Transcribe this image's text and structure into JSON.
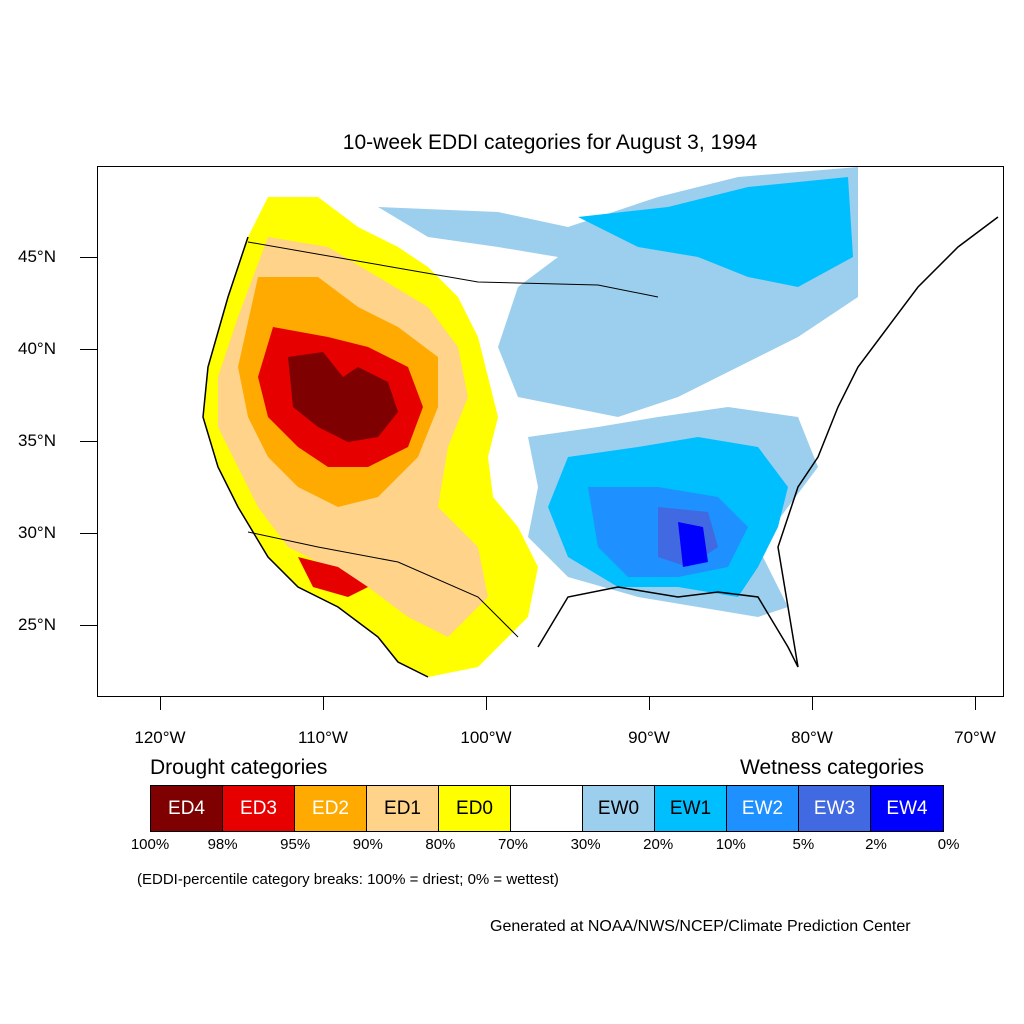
{
  "title": "10-week EDDI categories for August 3, 1994",
  "y_axis_labels": [
    "45°N",
    "40°N",
    "35°N",
    "30°N",
    "25°N"
  ],
  "x_axis_labels": [
    "120°W",
    "110°W",
    "100°W",
    "90°W",
    "80°W",
    "70°W"
  ],
  "legend": {
    "drought_title": "Drought categories",
    "wetness_title": "Wetness categories",
    "categories": [
      {
        "label": "ED4",
        "color": "#7f0000",
        "text_color": "#ffffff"
      },
      {
        "label": "ED3",
        "color": "#e60000",
        "text_color": "#ffffff"
      },
      {
        "label": "ED2",
        "color": "#ffaa00",
        "text_color": "#ffffff"
      },
      {
        "label": "ED1",
        "color": "#ffd38a",
        "text_color": "#000000"
      },
      {
        "label": "ED0",
        "color": "#ffff00",
        "text_color": "#000000"
      },
      {
        "label": "",
        "color": "#ffffff",
        "text_color": "#000000"
      },
      {
        "label": "EW0",
        "color": "#9ccfee",
        "text_color": "#000000"
      },
      {
        "label": "EW1",
        "color": "#00bfff",
        "text_color": "#000000"
      },
      {
        "label": "EW2",
        "color": "#1e90ff",
        "text_color": "#ffffff"
      },
      {
        "label": "EW3",
        "color": "#4169e1",
        "text_color": "#ffffff"
      },
      {
        "label": "EW4",
        "color": "#0000ff",
        "text_color": "#ffffff"
      }
    ],
    "breaks": [
      "100%",
      "98%",
      "95%",
      "90%",
      "80%",
      "70%",
      "30%",
      "20%",
      "10%",
      "5%",
      "2%",
      "0%"
    ]
  },
  "note": "(EDDI-percentile category breaks: 100% = driest; 0% = wettest)",
  "credit": "Generated at NOAA/NWS/NCEP/Climate Prediction Center"
}
